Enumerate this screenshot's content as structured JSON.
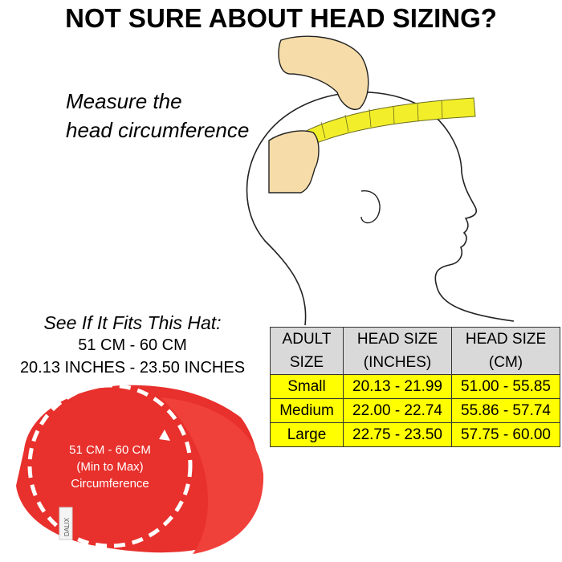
{
  "title": "NOT SURE ABOUT HEAD SIZING?",
  "instruction": {
    "line1": "Measure the",
    "line2": "head circumference"
  },
  "fit_info": {
    "heading": "See If It Fits This Hat:",
    "cm_range": "51 CM - 60 CM",
    "inch_range": "20.13 INCHES -  23.50 INCHES"
  },
  "hat_label": {
    "line1": "51 CM - 60 CM",
    "line2": "(Min to Max)",
    "line3": "Circumference",
    "brand_tag": "DALIX"
  },
  "colors": {
    "hat": "#e8302c",
    "tape": "#f2ef2a",
    "hand": "#f6dca8",
    "table_header": "#d9d9d9",
    "table_row": "#ffff00"
  },
  "size_table": {
    "headers": [
      [
        "ADULT",
        "SIZE"
      ],
      [
        "HEAD SIZE",
        "(INCHES)"
      ],
      [
        "HEAD SIZE",
        "(CM)"
      ]
    ],
    "rows": [
      {
        "size": "Small",
        "inches": "20.13 - 21.99",
        "cm": "51.00 - 55.85"
      },
      {
        "size": "Medium",
        "inches": "22.00 - 22.74",
        "cm": "55.86 - 57.74"
      },
      {
        "size": "Large",
        "inches": "22.75 - 23.50",
        "cm": "57.75 - 60.00"
      }
    ]
  }
}
